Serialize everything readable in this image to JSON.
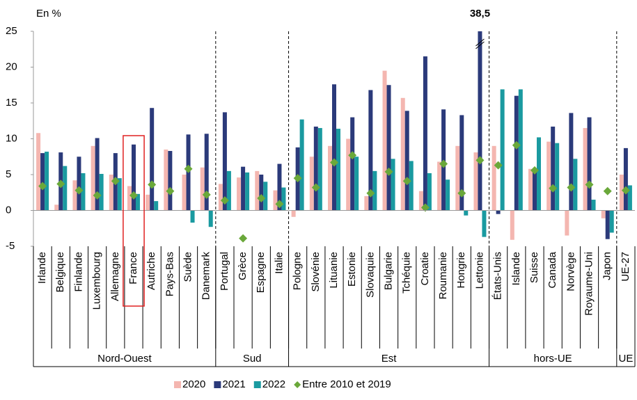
{
  "chart_data": {
    "type": "bar",
    "y_label": "En %",
    "categories": [
      "Irlande",
      "Belgique",
      "Finlande",
      "Luxembourg",
      "Allemagne",
      "France",
      "Autriche",
      "Pays-Bas",
      "Suède",
      "Danemark",
      "Portugal",
      "Grèce",
      "Espagne",
      "Italie",
      "Pologne",
      "Slovénie",
      "Lituanie",
      "Estonie",
      "Slovaquie",
      "Bulgarie",
      "Tchéquie",
      "Croatie",
      "Roumanie",
      "Hongrie",
      "Lettonie",
      "États-Unis",
      "Islande",
      "Suisse",
      "Canada",
      "Norvège",
      "Royaume-Uni",
      "Japon",
      "UE-27"
    ],
    "groups": [
      {
        "label": "Nord-Ouest",
        "size": 10
      },
      {
        "label": "Sud",
        "size": 4
      },
      {
        "label": "Est",
        "size": 11
      },
      {
        "label": "hors-UE",
        "size": 7
      },
      {
        "label": "UE",
        "size": 1
      }
    ],
    "highlight_index": 5,
    "series": [
      {
        "name": "2020",
        "color": "#f4b6b0",
        "values": [
          10.8,
          0.8,
          4.2,
          9.0,
          5.0,
          3.4,
          2.2,
          8.5,
          5.0,
          6.0,
          3.7,
          4.6,
          5.5,
          2.8,
          -0.9,
          7.5,
          9.0,
          10.0,
          2.0,
          19.5,
          15.7,
          2.7,
          6.8,
          9.0,
          8.1,
          9.0,
          -4.1,
          5.8,
          9.6,
          -3.5,
          11.5,
          -1.1,
          5.0
        ]
      },
      {
        "name": "2021",
        "color": "#2b3a7a",
        "values": [
          8.0,
          8.1,
          7.5,
          10.1,
          8.0,
          9.2,
          14.3,
          8.3,
          10.6,
          10.7,
          13.7,
          6.1,
          5.0,
          6.5,
          8.8,
          11.7,
          17.6,
          13.0,
          16.8,
          17.5,
          13.9,
          21.5,
          14.1,
          13.3,
          38.5,
          -0.5,
          16.0,
          5.4,
          11.7,
          13.6,
          13.0,
          -4.0,
          8.7
        ],
        "value_labels": [
          null,
          null,
          null,
          null,
          null,
          null,
          null,
          null,
          null,
          null,
          null,
          null,
          null,
          null,
          null,
          null,
          null,
          null,
          null,
          null,
          null,
          null,
          null,
          null,
          "38,5",
          null,
          null,
          null,
          null,
          null,
          null,
          null,
          null
        ]
      },
      {
        "name": "2022",
        "color": "#1a9aa0",
        "values": [
          8.2,
          6.2,
          5.2,
          5.1,
          4.5,
          2.3,
          1.3,
          0.0,
          -1.7,
          -2.3,
          5.5,
          5.3,
          4.0,
          3.2,
          12.7,
          11.5,
          11.4,
          7.5,
          5.5,
          7.2,
          6.9,
          5.2,
          4.3,
          -0.7,
          -3.7,
          16.9,
          16.9,
          10.2,
          9.4,
          7.2,
          1.5,
          -3.1,
          3.5
        ]
      },
      {
        "name": "Entre 2010 et 2019",
        "color": "#6aa83a",
        "marker": "diamond",
        "values": [
          3.4,
          3.7,
          2.8,
          2.1,
          4.1,
          2.1,
          3.6,
          2.7,
          5.8,
          2.2,
          1.4,
          -3.9,
          1.7,
          0.9,
          4.5,
          3.2,
          6.7,
          7.7,
          2.4,
          5.4,
          4.1,
          0.4,
          6.5,
          2.4,
          7.0,
          6.3,
          9.1,
          5.6,
          3.1,
          3.2,
          3.6,
          2.7,
          2.8
        ]
      }
    ],
    "ylim": [
      -5,
      25
    ],
    "yticks": [
      -5,
      0,
      5,
      10,
      15,
      20,
      25
    ],
    "grid": false,
    "legend": "bottom"
  }
}
